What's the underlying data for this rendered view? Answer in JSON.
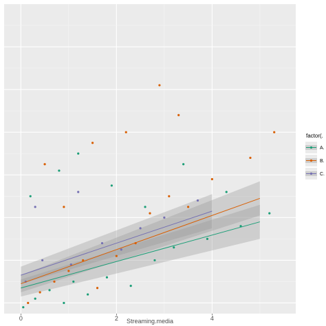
{
  "chart_data": {
    "type": "scatter",
    "title": "",
    "xlabel": "Streaming.media",
    "ylabel": "",
    "xlim": [
      -0.35,
      5.75
    ],
    "ylim": [
      -0.45,
      1.0
    ],
    "x_ticks": [
      0,
      2,
      4
    ],
    "x_tick_labels": [
      "0",
      "2",
      "4"
    ],
    "grid": true,
    "background": "#ebebeb",
    "legend": {
      "title": "factor(.",
      "placement": "right",
      "entries": [
        "A.",
        "B.",
        "C."
      ]
    },
    "series": [
      {
        "name": "A.",
        "color": "#1b9e77",
        "points": [
          [
            0.05,
            -0.42
          ],
          [
            0.3,
            -0.38
          ],
          [
            0.6,
            -0.34
          ],
          [
            0.9,
            -0.4
          ],
          [
            1.1,
            -0.3
          ],
          [
            1.4,
            -0.36
          ],
          [
            1.8,
            -0.28
          ],
          [
            2.3,
            -0.32
          ],
          [
            2.8,
            -0.2
          ],
          [
            3.2,
            -0.14
          ],
          [
            3.9,
            -0.1
          ],
          [
            4.6,
            -0.04
          ],
          [
            5.2,
            0.02
          ],
          [
            0.2,
            0.1
          ],
          [
            0.8,
            0.22
          ],
          [
            1.2,
            0.3
          ],
          [
            1.9,
            0.15
          ],
          [
            2.6,
            0.05
          ],
          [
            3.4,
            0.25
          ],
          [
            4.3,
            0.12
          ]
        ],
        "trend": {
          "x0": 0.0,
          "y0": -0.33,
          "x1": 5.0,
          "y1": -0.02
        }
      },
      {
        "name": "B.",
        "color": "#d95f02",
        "points": [
          [
            0.15,
            -0.4
          ],
          [
            0.4,
            -0.35
          ],
          [
            0.7,
            -0.3
          ],
          [
            1.0,
            -0.25
          ],
          [
            1.3,
            -0.2
          ],
          [
            1.6,
            -0.33
          ],
          [
            2.0,
            -0.18
          ],
          [
            2.4,
            -0.12
          ],
          [
            2.7,
            0.02
          ],
          [
            3.1,
            0.1
          ],
          [
            3.5,
            0.05
          ],
          [
            4.0,
            0.18
          ],
          [
            4.8,
            0.28
          ],
          [
            5.3,
            0.4
          ],
          [
            0.5,
            0.25
          ],
          [
            1.5,
            0.35
          ],
          [
            2.9,
            0.62
          ],
          [
            3.3,
            0.48
          ],
          [
            0.9,
            0.05
          ],
          [
            2.2,
            0.4
          ]
        ],
        "trend": {
          "x0": 0.0,
          "y0": -0.31,
          "x1": 5.0,
          "y1": 0.09
        }
      },
      {
        "name": "C.",
        "color": "#7570b3",
        "points": [
          [
            0.1,
            -0.3
          ],
          [
            0.45,
            -0.2
          ],
          [
            1.05,
            -0.22
          ],
          [
            1.7,
            -0.12
          ],
          [
            2.1,
            -0.15
          ],
          [
            2.5,
            -0.05
          ],
          [
            3.0,
            0.0
          ],
          [
            3.7,
            0.08
          ],
          [
            0.3,
            0.05
          ],
          [
            1.2,
            0.12
          ]
        ],
        "trend": {
          "x0": 0.0,
          "y0": -0.27,
          "x1": 4.0,
          "y1": 0.03
        }
      }
    ]
  }
}
